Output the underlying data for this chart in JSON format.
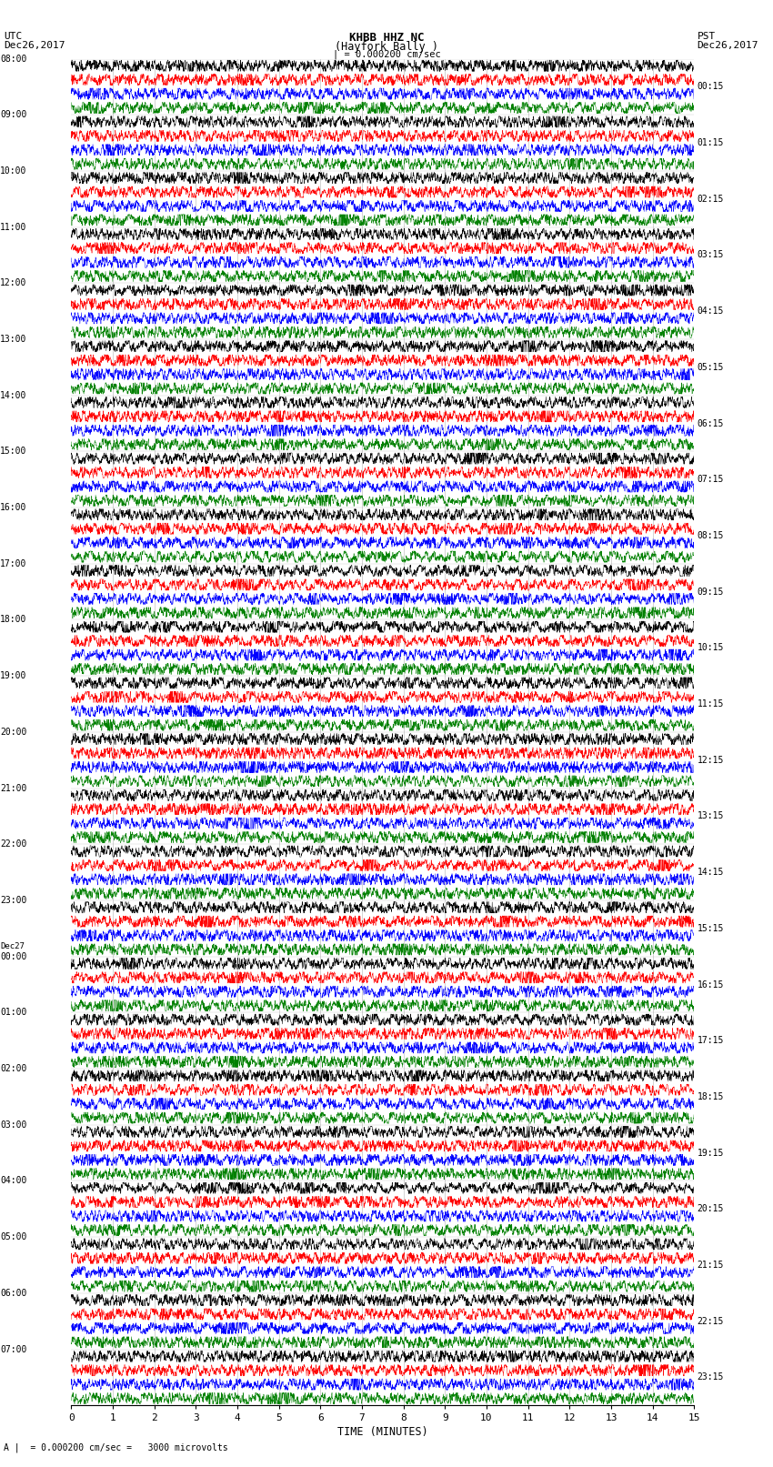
{
  "title_line1": "KHBB HHZ NC",
  "title_line2": "(Hayfork Bally )",
  "title_line3": "| = 0.000200 cm/sec",
  "left_header1": "UTC",
  "left_header2": "Dec26,2017",
  "right_header1": "PST",
  "right_header2": "Dec26,2017",
  "xlabel": "TIME (MINUTES)",
  "footer": "A |  = 0.000200 cm/sec =   3000 microvolts",
  "x_tick_labels": [
    "0",
    "1",
    "2",
    "3",
    "4",
    "5",
    "6",
    "7",
    "8",
    "9",
    "10",
    "11",
    "12",
    "13",
    "14",
    "15"
  ],
  "left_times": [
    "08:00",
    "09:00",
    "10:00",
    "11:00",
    "12:00",
    "13:00",
    "14:00",
    "15:00",
    "16:00",
    "17:00",
    "18:00",
    "19:00",
    "20:00",
    "21:00",
    "22:00",
    "23:00",
    "Dec27\n00:00",
    "01:00",
    "02:00",
    "03:00",
    "04:00",
    "05:00",
    "06:00",
    "07:00"
  ],
  "right_times": [
    "00:15",
    "01:15",
    "02:15",
    "03:15",
    "04:15",
    "05:15",
    "06:15",
    "07:15",
    "08:15",
    "09:15",
    "10:15",
    "11:15",
    "12:15",
    "13:15",
    "14:15",
    "15:15",
    "16:15",
    "17:15",
    "18:15",
    "19:15",
    "20:15",
    "21:15",
    "22:15",
    "23:15"
  ],
  "colors": [
    "black",
    "red",
    "blue",
    "green"
  ],
  "n_rows": 24,
  "traces_per_row": 4,
  "bg_color": "white",
  "trace_amplitude": 0.42,
  "noise_scale": 1.0,
  "fig_width": 8.5,
  "fig_height": 16.13,
  "dpi": 100
}
